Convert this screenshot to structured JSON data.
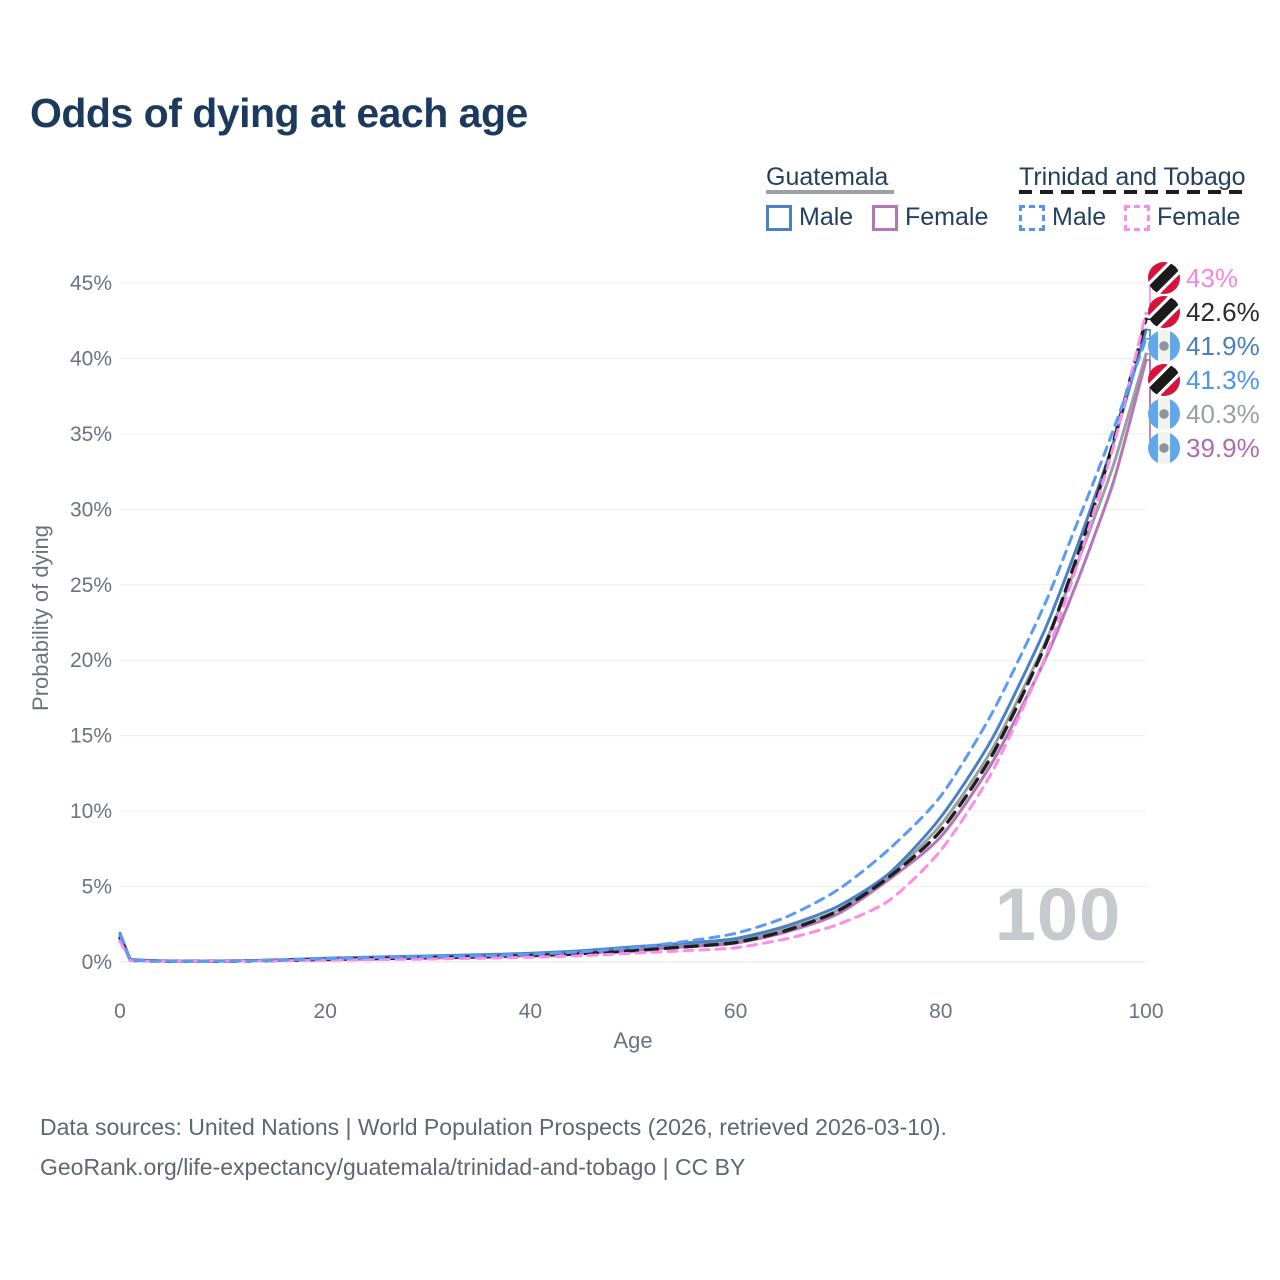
{
  "title": "Odds of dying at each age",
  "legend": {
    "guatemala": {
      "label": "Guatemala",
      "male": "Male",
      "female": "Female"
    },
    "trinidad_and_tobago": {
      "label": "Trinidad and Tobago",
      "male": "Male",
      "female": "Female"
    }
  },
  "chart_data": {
    "type": "line",
    "title": "Odds of dying at each age",
    "xlabel": "Age",
    "ylabel": "Probability of dying",
    "xlim": [
      0,
      100
    ],
    "ylim": [
      0,
      45
    ],
    "x_ticks": [
      0,
      20,
      40,
      60,
      80,
      100
    ],
    "y_ticks": [
      "45%",
      "40%",
      "35%",
      "30%",
      "25%",
      "20%",
      "15%",
      "10%",
      "5%",
      "0%"
    ],
    "grid": "horizontal",
    "legend_position": "top-right",
    "hover_age": "100",
    "ages": [
      0,
      1,
      5,
      10,
      15,
      20,
      25,
      30,
      35,
      40,
      45,
      50,
      55,
      60,
      65,
      70,
      75,
      80,
      85,
      90,
      93,
      95,
      97,
      100
    ],
    "series": [
      {
        "id": "gt_both",
        "name": "Guatemala Both sexes",
        "color": "#9b9fa5",
        "dash": "solid",
        "values": [
          1.75,
          0.14,
          0.055,
          0.065,
          0.11,
          0.2,
          0.27,
          0.33,
          0.4,
          0.5,
          0.66,
          0.89,
          1.12,
          1.4,
          2.2,
          3.45,
          5.75,
          9.1,
          14.1,
          20.9,
          25.9,
          29.5,
          33.3,
          40.3
        ]
      },
      {
        "id": "gt_female",
        "name": "Guatemala Female",
        "color": "#b377b8",
        "dash": "solid",
        "values": [
          1.6,
          0.13,
          0.05,
          0.06,
          0.09,
          0.15,
          0.2,
          0.26,
          0.33,
          0.43,
          0.57,
          0.78,
          1.0,
          1.25,
          2.0,
          3.2,
          5.5,
          8.3,
          13.2,
          19.8,
          24.7,
          28.3,
          32.2,
          39.9
        ]
      },
      {
        "id": "gt_male",
        "name": "Guatemala Male",
        "color": "#4a80c4",
        "dash": "solid",
        "values": [
          1.9,
          0.15,
          0.06,
          0.07,
          0.13,
          0.25,
          0.33,
          0.4,
          0.48,
          0.58,
          0.75,
          1.0,
          1.25,
          1.55,
          2.4,
          3.7,
          5.9,
          9.6,
          14.8,
          21.8,
          27.0,
          30.8,
          34.8,
          41.9
        ]
      },
      {
        "id": "tt_both",
        "name": "Trinidad and Tobago Both sexes",
        "color": "#1f1f1f",
        "dash": "dashed",
        "values": [
          1.6,
          0.11,
          0.045,
          0.055,
          0.1,
          0.17,
          0.23,
          0.28,
          0.34,
          0.42,
          0.55,
          0.75,
          1.0,
          1.3,
          2.1,
          3.4,
          5.65,
          8.7,
          13.7,
          20.7,
          26.3,
          30.3,
          34.9,
          42.6
        ]
      },
      {
        "id": "tt_female",
        "name": "Trinidad and Tobago Female",
        "color": "#fb8de9",
        "dash": "dashed",
        "values": [
          1.4,
          0.1,
          0.04,
          0.05,
          0.08,
          0.12,
          0.16,
          0.2,
          0.25,
          0.32,
          0.42,
          0.58,
          0.75,
          0.95,
          1.55,
          2.5,
          4.1,
          7.4,
          12.6,
          19.9,
          25.7,
          30.0,
          34.6,
          43.0
        ]
      },
      {
        "id": "tt_male",
        "name": "Trinidad and Tobago Male",
        "color": "#5b9bf5",
        "dash": "dashed",
        "values": [
          1.8,
          0.12,
          0.05,
          0.06,
          0.12,
          0.22,
          0.3,
          0.36,
          0.42,
          0.52,
          0.68,
          0.95,
          1.35,
          1.9,
          3.0,
          4.8,
          7.5,
          11.0,
          16.5,
          23.5,
          28.6,
          32.0,
          35.6,
          41.3
        ]
      }
    ],
    "end_labels": [
      {
        "value_text": "43%",
        "value": 43.0,
        "color": "#f587e4",
        "flag": "tt",
        "series": "tt_female"
      },
      {
        "value_text": "42.6%",
        "value": 42.6,
        "color": "#2b2b2b",
        "flag": "tt",
        "series": "tt_both"
      },
      {
        "value_text": "41.9%",
        "value": 41.9,
        "color": "#4a7ec0",
        "flag": "gt",
        "series": "gt_male"
      },
      {
        "value_text": "41.3%",
        "value": 41.3,
        "color": "#4d94f0",
        "flag": "tt",
        "series": "tt_male"
      },
      {
        "value_text": "40.3%",
        "value": 40.3,
        "color": "#9a9fa4",
        "flag": "gt",
        "series": "gt_both"
      },
      {
        "value_text": "39.9%",
        "value": 39.9,
        "color": "#ad6cb0",
        "flag": "gt",
        "series": "gt_female"
      }
    ]
  },
  "footer": {
    "line1": "Data sources: United Nations | World Population Prospects (2026, retrieved 2026-03-10).",
    "line2": "GeoRank.org/life-expectancy/guatemala/trinidad-and-tobago | CC BY"
  }
}
